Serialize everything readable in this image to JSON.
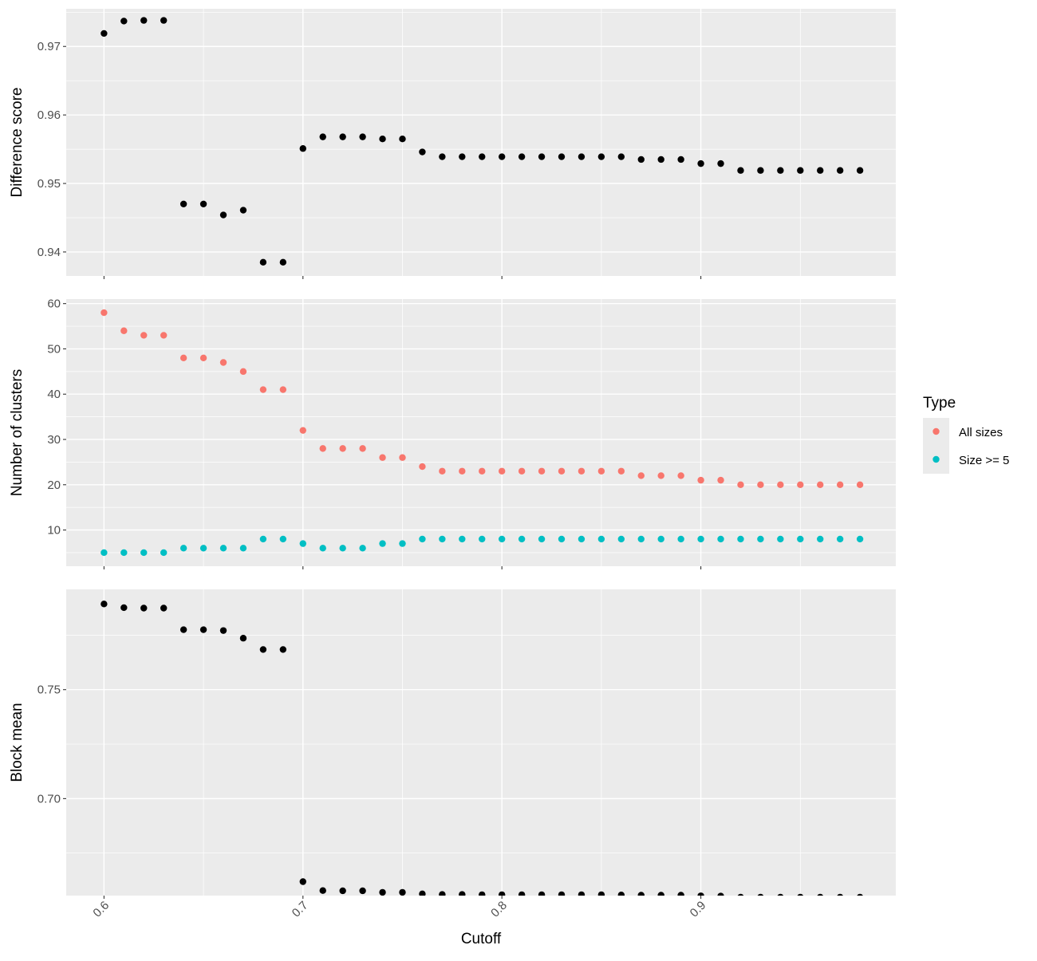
{
  "chart_data": {
    "type": "scatter",
    "xlabel": "Cutoff",
    "x_ticks": [
      0.6,
      0.7,
      0.8,
      0.9
    ],
    "x_tick_labels": [
      "0.6",
      "0.7",
      "0.8",
      "0.9"
    ],
    "xlim": [
      0.581,
      0.998
    ],
    "grid": true,
    "legend": {
      "title": "Type",
      "position": "right",
      "entries": [
        {
          "label": "All sizes",
          "color": "#F8766D"
        },
        {
          "label": "Size >= 5",
          "color": "#00BFC4"
        }
      ]
    },
    "panels": [
      {
        "ylabel": "Difference score",
        "ylim": [
          0.9365,
          0.9755
        ],
        "y_ticks": [
          0.94,
          0.95,
          0.96,
          0.97
        ],
        "y_tick_labels": [
          "0.94",
          "0.95",
          "0.96",
          "0.97"
        ],
        "series": [
          {
            "color": "#000000",
            "x": [
              0.6,
              0.61,
              0.62,
              0.63,
              0.64,
              0.65,
              0.66,
              0.67,
              0.68,
              0.69,
              0.7,
              0.71,
              0.72,
              0.73,
              0.74,
              0.75,
              0.76,
              0.77,
              0.78,
              0.79,
              0.8,
              0.81,
              0.82,
              0.83,
              0.84,
              0.85,
              0.86,
              0.87,
              0.88,
              0.89,
              0.9,
              0.91,
              0.92,
              0.93,
              0.94,
              0.95,
              0.96,
              0.97,
              0.98
            ],
            "y": [
              0.9719,
              0.9737,
              0.9738,
              0.9738,
              0.947,
              0.947,
              0.9454,
              0.9461,
              0.9385,
              0.9385,
              0.9551,
              0.9568,
              0.9568,
              0.9568,
              0.9565,
              0.9565,
              0.9546,
              0.9539,
              0.9539,
              0.9539,
              0.9539,
              0.9539,
              0.9539,
              0.9539,
              0.9539,
              0.9539,
              0.9539,
              0.9535,
              0.9535,
              0.9535,
              0.9529,
              0.9529,
              0.9519,
              0.9519,
              0.9519,
              0.9519,
              0.9519,
              0.9519,
              0.9519
            ]
          }
        ]
      },
      {
        "ylabel": "Number of clusters",
        "ylim": [
          2,
          61
        ],
        "y_ticks": [
          10,
          20,
          30,
          40,
          50,
          60
        ],
        "y_tick_labels": [
          "10",
          "20",
          "30",
          "40",
          "50",
          "60"
        ],
        "series": [
          {
            "name": "All sizes",
            "color": "#F8766D",
            "x": [
              0.6,
              0.61,
              0.62,
              0.63,
              0.64,
              0.65,
              0.66,
              0.67,
              0.68,
              0.69,
              0.7,
              0.71,
              0.72,
              0.73,
              0.74,
              0.75,
              0.76,
              0.77,
              0.78,
              0.79,
              0.8,
              0.81,
              0.82,
              0.83,
              0.84,
              0.85,
              0.86,
              0.87,
              0.88,
              0.89,
              0.9,
              0.91,
              0.92,
              0.93,
              0.94,
              0.95,
              0.96,
              0.97,
              0.98
            ],
            "y": [
              58,
              54,
              53,
              53,
              48,
              48,
              47,
              45,
              41,
              41,
              32,
              28,
              28,
              28,
              26,
              26,
              24,
              23,
              23,
              23,
              23,
              23,
              23,
              23,
              23,
              23,
              23,
              22,
              22,
              22,
              21,
              21,
              20,
              20,
              20,
              20,
              20,
              20,
              20
            ]
          },
          {
            "name": "Size >= 5",
            "color": "#00BFC4",
            "x": [
              0.6,
              0.61,
              0.62,
              0.63,
              0.64,
              0.65,
              0.66,
              0.67,
              0.68,
              0.69,
              0.7,
              0.71,
              0.72,
              0.73,
              0.74,
              0.75,
              0.76,
              0.77,
              0.78,
              0.79,
              0.8,
              0.81,
              0.82,
              0.83,
              0.84,
              0.85,
              0.86,
              0.87,
              0.88,
              0.89,
              0.9,
              0.91,
              0.92,
              0.93,
              0.94,
              0.95,
              0.96,
              0.97,
              0.98
            ],
            "y": [
              5,
              5,
              5,
              5,
              6,
              6,
              6,
              6,
              8,
              8,
              7,
              6,
              6,
              6,
              7,
              7,
              8,
              8,
              8,
              8,
              8,
              8,
              8,
              8,
              8,
              8,
              8,
              8,
              8,
              8,
              8,
              8,
              8,
              8,
              8,
              8,
              8,
              8,
              8
            ]
          }
        ]
      },
      {
        "ylabel": "Block mean",
        "ylim": [
          0.6555,
          0.796
        ],
        "y_ticks": [
          0.7,
          0.75
        ],
        "y_tick_labels": [
          "0.70",
          "0.75"
        ],
        "series": [
          {
            "color": "#000000",
            "x": [
              0.6,
              0.61,
              0.62,
              0.63,
              0.64,
              0.65,
              0.66,
              0.67,
              0.68,
              0.69,
              0.7,
              0.71,
              0.72,
              0.73,
              0.74,
              0.75,
              0.76,
              0.77,
              0.78,
              0.79,
              0.8,
              0.81,
              0.82,
              0.83,
              0.84,
              0.85,
              0.86,
              0.87,
              0.88,
              0.89,
              0.9,
              0.91,
              0.92,
              0.93,
              0.94,
              0.95,
              0.96,
              0.97,
              0.98
            ],
            "y": [
              0.7893,
              0.7876,
              0.7874,
              0.7874,
              0.7775,
              0.7775,
              0.7771,
              0.7736,
              0.7684,
              0.7684,
              0.6619,
              0.6578,
              0.6577,
              0.6577,
              0.657,
              0.657,
              0.6563,
              0.656,
              0.656,
              0.6559,
              0.6559,
              0.6559,
              0.6559,
              0.6559,
              0.6559,
              0.6559,
              0.6558,
              0.6557,
              0.6557,
              0.6557,
              0.6554,
              0.6553,
              0.6548,
              0.6548,
              0.6548,
              0.6548,
              0.6548,
              0.6548,
              0.6548
            ]
          }
        ]
      }
    ]
  }
}
